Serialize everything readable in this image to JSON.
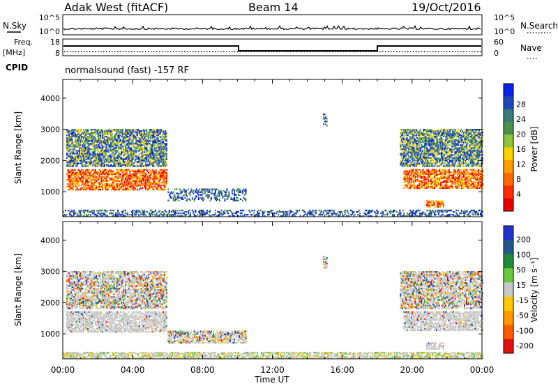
{
  "header": {
    "site": "Adak West (fitACF)",
    "beam": "Beam 14",
    "date": "19/Oct/2016"
  },
  "top_panels": {
    "nsky_label": "N.Sky",
    "nsky_ticks": [
      "10^5",
      "10^0"
    ],
    "nsearch_label": "N.Search",
    "nsearch_ticks": [
      "10^5",
      "10^0"
    ],
    "freq_label": "Freq.",
    "freq_unit": "[MHz]",
    "freq_ticks": [
      "18",
      "8"
    ],
    "nave_label": "Nave",
    "nave_ticks": [
      "60",
      "0"
    ],
    "cpid_label": "CPID",
    "cpid_text": "normalsound (fast) -157 RF"
  },
  "chart_data": [
    {
      "type": "heatmap",
      "title": "Power",
      "ylabel": "Slant Range [km]",
      "ylim": [
        200,
        4600
      ],
      "yticks": [
        "1000",
        "2000",
        "3000",
        "4000"
      ],
      "xticks": [
        "00:00",
        "04:00",
        "08:00",
        "12:00",
        "16:00",
        "20:00",
        "00:00"
      ],
      "colorbar": {
        "label": "Power [dB]",
        "ticks": [
          "4",
          "8",
          "12",
          "16",
          "20",
          "24",
          "28"
        ],
        "colors": [
          "#0a22e6",
          "#1f46b4",
          "#3b7a7a",
          "#4b8f4b",
          "#8cc23c",
          "#ffd000",
          "#ff9c00",
          "#ff6a00",
          "#ff2c00",
          "#e60000"
        ]
      },
      "regions": [
        {
          "t0": 0.2,
          "t1": 5.9,
          "r0": 1050,
          "r1": 1700,
          "level": "high"
        },
        {
          "t0": 0.2,
          "t1": 5.9,
          "r0": 1800,
          "r1": 3000,
          "level": "medium"
        },
        {
          "t0": 19.5,
          "t1": 24.0,
          "r0": 1100,
          "r1": 1700,
          "level": "high"
        },
        {
          "t0": 19.3,
          "t1": 24.0,
          "r0": 1800,
          "r1": 3000,
          "level": "medium"
        },
        {
          "t0": 20.8,
          "t1": 21.8,
          "r0": 500,
          "r1": 700,
          "level": "high"
        },
        {
          "t0": 6.0,
          "t1": 10.5,
          "r0": 700,
          "r1": 1100,
          "level": "low"
        },
        {
          "t0": 0.0,
          "t1": 24.0,
          "r0": 200,
          "r1": 400,
          "level": "low"
        },
        {
          "t0": 14.9,
          "t1": 15.1,
          "r0": 3100,
          "r1": 3500,
          "level": "low"
        }
      ]
    },
    {
      "type": "heatmap",
      "title": "Velocity",
      "ylabel": "Slant Range [km]",
      "xlabel": "Time UT",
      "ylim": [
        200,
        4600
      ],
      "yticks": [
        "1000",
        "2000",
        "3000",
        "4000"
      ],
      "xticks": [
        "00:00",
        "04:00",
        "08:00",
        "12:00",
        "16:00",
        "20:00",
        "00:00"
      ],
      "colorbar": {
        "label": "Velocity [m s⁻¹]",
        "ticks": [
          "200",
          "100",
          "50",
          "15",
          "-15",
          "-50",
          "-100",
          "-200"
        ],
        "colors": [
          "#2233cc",
          "#23588c",
          "#1e8a3a",
          "#69c83d",
          "#c8c8c8",
          "#ffc800",
          "#ff9a00",
          "#ff5a00",
          "#e01010"
        ]
      },
      "regions": [
        {
          "t0": 0.2,
          "t1": 5.9,
          "r0": 1050,
          "r1": 1700,
          "level": "gray"
        },
        {
          "t0": 0.2,
          "t1": 5.9,
          "r0": 1800,
          "r1": 3000,
          "level": "mixed"
        },
        {
          "t0": 19.5,
          "t1": 24.0,
          "r0": 1100,
          "r1": 1700,
          "level": "gray"
        },
        {
          "t0": 19.3,
          "t1": 24.0,
          "r0": 1800,
          "r1": 3000,
          "level": "mixed"
        },
        {
          "t0": 20.8,
          "t1": 21.8,
          "r0": 500,
          "r1": 700,
          "level": "gray"
        },
        {
          "t0": 6.0,
          "t1": 10.5,
          "r0": 700,
          "r1": 1100,
          "level": "mixed"
        },
        {
          "t0": 0.0,
          "t1": 24.0,
          "r0": 200,
          "r1": 400,
          "level": "ground"
        },
        {
          "t0": 14.9,
          "t1": 15.1,
          "r0": 3100,
          "r1": 3500,
          "level": "mixed"
        }
      ]
    }
  ]
}
